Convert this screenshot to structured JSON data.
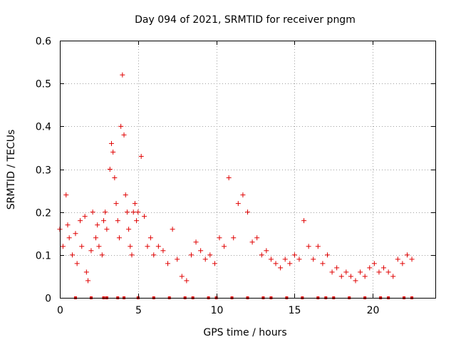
{
  "chart_data": {
    "type": "scatter",
    "title": "Day 094 of 2021, SRMTID for receiver pngm",
    "xlabel": "GPS time / hours",
    "ylabel": "SRMTID / TECUs",
    "xlim": [
      0,
      24
    ],
    "ylim": [
      0,
      0.6
    ],
    "xticks": [
      0,
      5,
      10,
      15,
      20
    ],
    "yticks": [
      0,
      0.1,
      0.2,
      0.3,
      0.4,
      0.5,
      0.6
    ],
    "xtick_labels": [
      "0",
      "5",
      "10",
      "15",
      "20"
    ],
    "ytick_labels": [
      "0",
      "0.1",
      "0.2",
      "0.3",
      "0.4",
      "0.5",
      "0.6"
    ],
    "grid": true,
    "marker": "+",
    "color": "#e00000",
    "series": [
      {
        "name": "SRMTID",
        "x": [
          0.0,
          0.2,
          0.4,
          0.5,
          0.6,
          0.8,
          1.0,
          1.1,
          1.3,
          1.4,
          1.6,
          1.7,
          1.8,
          2.0,
          2.1,
          2.3,
          2.4,
          2.5,
          2.7,
          2.8,
          2.9,
          3.0,
          3.2,
          3.3,
          3.4,
          3.5,
          3.6,
          3.7,
          3.8,
          3.9,
          4.0,
          4.1,
          4.2,
          4.3,
          4.4,
          4.5,
          4.6,
          4.7,
          4.8,
          4.9,
          5.0,
          5.2,
          5.4,
          5.6,
          5.8,
          6.0,
          6.3,
          6.6,
          6.9,
          7.2,
          7.5,
          7.8,
          8.1,
          8.4,
          8.7,
          9.0,
          9.3,
          9.6,
          9.9,
          10.2,
          10.5,
          10.8,
          11.1,
          11.4,
          11.7,
          12.0,
          12.3,
          12.6,
          12.9,
          13.2,
          13.5,
          13.8,
          14.1,
          14.4,
          14.7,
          15.0,
          15.3,
          15.6,
          15.9,
          16.2,
          16.5,
          16.8,
          17.1,
          17.4,
          17.7,
          18.0,
          18.3,
          18.6,
          18.9,
          19.2,
          19.5,
          19.8,
          20.1,
          20.4,
          20.7,
          21.0,
          21.3,
          21.6,
          21.9,
          22.2,
          22.5
        ],
        "y": [
          0.16,
          0.12,
          0.24,
          0.17,
          0.14,
          0.1,
          0.15,
          0.08,
          0.18,
          0.12,
          0.19,
          0.06,
          0.04,
          0.11,
          0.2,
          0.14,
          0.17,
          0.12,
          0.1,
          0.18,
          0.2,
          0.16,
          0.3,
          0.36,
          0.34,
          0.28,
          0.22,
          0.18,
          0.14,
          0.4,
          0.52,
          0.38,
          0.24,
          0.2,
          0.16,
          0.12,
          0.1,
          0.2,
          0.22,
          0.18,
          0.2,
          0.33,
          0.19,
          0.12,
          0.14,
          0.1,
          0.12,
          0.11,
          0.08,
          0.16,
          0.09,
          0.05,
          0.04,
          0.1,
          0.13,
          0.11,
          0.09,
          0.1,
          0.08,
          0.14,
          0.12,
          0.28,
          0.14,
          0.22,
          0.24,
          0.2,
          0.13,
          0.14,
          0.1,
          0.11,
          0.09,
          0.08,
          0.07,
          0.09,
          0.08,
          0.1,
          0.09,
          0.18,
          0.12,
          0.09,
          0.12,
          0.08,
          0.1,
          0.06,
          0.07,
          0.05,
          0.06,
          0.05,
          0.04,
          0.06,
          0.05,
          0.07,
          0.08,
          0.06,
          0.07,
          0.06,
          0.05,
          0.09,
          0.08,
          0.1,
          0.09
        ]
      }
    ],
    "gap_markers_x": [
      1.0,
      2.0,
      2.8,
      3.0,
      3.7,
      4.1,
      5.0,
      6.0,
      7.0,
      8.0,
      8.5,
      9.5,
      10.0,
      11.0,
      12.0,
      13.0,
      13.5,
      14.5,
      15.5,
      16.5,
      17.0,
      17.5,
      18.5,
      19.5,
      20.5,
      21.0,
      22.0,
      22.5
    ]
  }
}
